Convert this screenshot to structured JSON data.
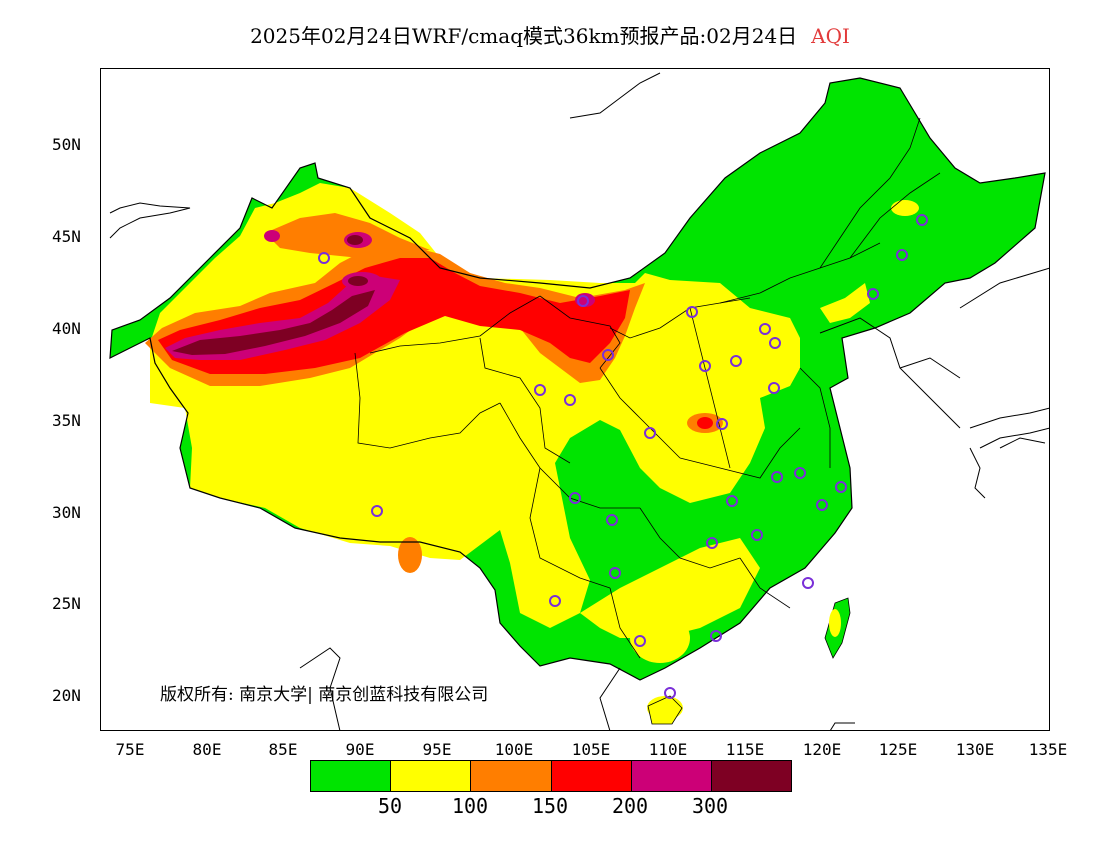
{
  "title": {
    "main": "2025年02月24日WRF/cmaq模式36km预报产品:02月24日",
    "product": "AQI",
    "product_color": "#e23b3b"
  },
  "axes": {
    "lat_labels": [
      "50N",
      "45N",
      "40N",
      "35N",
      "30N",
      "25N",
      "20N"
    ],
    "lon_labels": [
      "75E",
      "80E",
      "85E",
      "90E",
      "95E",
      "100E",
      "105E",
      "110E",
      "115E",
      "120E",
      "125E",
      "130E",
      "135E"
    ]
  },
  "copyright": "版权所有: 南京大学| 南京创蓝科技有限公司",
  "legend": {
    "colors": [
      "#00e400",
      "#ffff00",
      "#ff7e00",
      "#ff0000",
      "#cc0077",
      "#7e0023"
    ],
    "labels": [
      "50",
      "100",
      "150",
      "200",
      "300"
    ]
  },
  "station_marker_color": "#7a2fd8"
}
